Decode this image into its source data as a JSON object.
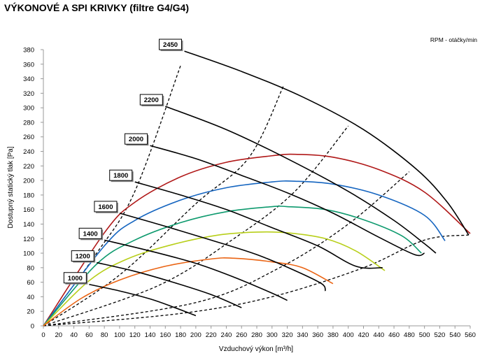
{
  "page": {
    "title": "VÝKONOVÉ A SPI KRIVKY (filtre G4/G4)",
    "rpm_note": "RPM - otáčky/min"
  },
  "chart_data": {
    "type": "line",
    "title": "VÝKONOVÉ A SPI KRIVKY (filtre G4/G4)",
    "xlabel": "Vzduchový výkon [m³/h]",
    "ylabel": "Dostupný statický tlak [Pa]",
    "xlim": [
      0,
      560
    ],
    "ylim": [
      0,
      380
    ],
    "x_ticks": [
      0,
      20,
      40,
      60,
      80,
      100,
      120,
      140,
      160,
      180,
      200,
      220,
      240,
      260,
      280,
      300,
      320,
      340,
      360,
      380,
      400,
      420,
      440,
      460,
      480,
      500,
      520,
      540,
      560
    ],
    "y_ticks": [
      0,
      20,
      40,
      60,
      80,
      100,
      120,
      140,
      160,
      180,
      200,
      220,
      240,
      260,
      280,
      300,
      320,
      340,
      360,
      380
    ],
    "grid": false,
    "fan_curves": [
      {
        "rpm": "1000",
        "points": [
          [
            60,
            57
          ],
          [
            100,
            48
          ],
          [
            140,
            37
          ],
          [
            170,
            26
          ],
          [
            200,
            14
          ]
        ]
      },
      {
        "rpm": "1200",
        "points": [
          [
            70,
            87
          ],
          [
            120,
            75
          ],
          [
            170,
            60
          ],
          [
            220,
            43
          ],
          [
            260,
            25
          ]
        ]
      },
      {
        "rpm": "1400",
        "points": [
          [
            80,
            118
          ],
          [
            140,
            103
          ],
          [
            200,
            86
          ],
          [
            250,
            67
          ],
          [
            300,
            45
          ],
          [
            320,
            35
          ]
        ]
      },
      {
        "rpm": "1600",
        "points": [
          [
            100,
            155
          ],
          [
            160,
            137
          ],
          [
            220,
            118
          ],
          [
            280,
            98
          ],
          [
            330,
            76
          ],
          [
            365,
            58
          ],
          [
            370,
            48
          ]
        ]
      },
      {
        "rpm": "1800",
        "points": [
          [
            120,
            198
          ],
          [
            180,
            180
          ],
          [
            240,
            160
          ],
          [
            300,
            135
          ],
          [
            360,
            110
          ],
          [
            410,
            82
          ],
          [
            445,
            80
          ]
        ]
      },
      {
        "rpm": "2000",
        "points": [
          [
            140,
            248
          ],
          [
            200,
            230
          ],
          [
            260,
            207
          ],
          [
            320,
            183
          ],
          [
            380,
            155
          ],
          [
            440,
            122
          ],
          [
            487,
            98
          ],
          [
            500,
            100
          ]
        ]
      },
      {
        "rpm": "2200",
        "points": [
          [
            160,
            302
          ],
          [
            240,
            270
          ],
          [
            320,
            230
          ],
          [
            400,
            185
          ],
          [
            460,
            145
          ],
          [
            500,
            113
          ],
          [
            515,
            100
          ]
        ]
      },
      {
        "rpm": "2450",
        "points": [
          [
            185,
            378
          ],
          [
            260,
            350
          ],
          [
            340,
            315
          ],
          [
            420,
            270
          ],
          [
            490,
            215
          ],
          [
            530,
            170
          ],
          [
            558,
            125
          ]
        ]
      }
    ],
    "system_curves": [
      {
        "points": [
          [
            0,
            0
          ],
          [
            70,
            100
          ],
          [
            120,
            185
          ],
          [
            180,
            358
          ]
        ]
      },
      {
        "points": [
          [
            0,
            0
          ],
          [
            100,
            70
          ],
          [
            200,
            168
          ],
          [
            270,
            232
          ],
          [
            315,
            330
          ]
        ]
      },
      {
        "points": [
          [
            0,
            0
          ],
          [
            150,
            55
          ],
          [
            250,
            120
          ],
          [
            330,
            185
          ],
          [
            400,
            275
          ]
        ]
      },
      {
        "points": [
          [
            0,
            0
          ],
          [
            200,
            32
          ],
          [
            310,
            80
          ],
          [
            400,
            140
          ],
          [
            480,
            212
          ]
        ]
      },
      {
        "points": [
          [
            0,
            0
          ],
          [
            180,
            17
          ],
          [
            300,
            40
          ],
          [
            420,
            80
          ],
          [
            500,
            118
          ],
          [
            558,
            125
          ]
        ]
      }
    ],
    "spi_curves": [
      {
        "color": "#b01818",
        "points": [
          [
            0,
            0
          ],
          [
            80,
            128
          ],
          [
            120,
            170
          ],
          [
            180,
            205
          ],
          [
            240,
            225
          ],
          [
            300,
            234
          ],
          [
            330,
            236
          ],
          [
            380,
            232
          ],
          [
            440,
            215
          ],
          [
            500,
            184
          ],
          [
            560,
            127
          ]
        ]
      },
      {
        "color": "#1565c0",
        "points": [
          [
            0,
            0
          ],
          [
            80,
            110
          ],
          [
            120,
            145
          ],
          [
            180,
            173
          ],
          [
            240,
            190
          ],
          [
            300,
            198
          ],
          [
            330,
            199
          ],
          [
            380,
            195
          ],
          [
            440,
            180
          ],
          [
            500,
            152
          ],
          [
            527,
            117
          ]
        ]
      },
      {
        "color": "#0e9a6e",
        "points": [
          [
            0,
            0
          ],
          [
            70,
            85
          ],
          [
            120,
            118
          ],
          [
            180,
            142
          ],
          [
            240,
            157
          ],
          [
            300,
            164
          ],
          [
            320,
            164
          ],
          [
            370,
            160
          ],
          [
            420,
            146
          ],
          [
            470,
            124
          ],
          [
            496,
            100
          ]
        ]
      },
      {
        "color": "#b8cf1a",
        "points": [
          [
            0,
            0
          ],
          [
            60,
            62
          ],
          [
            110,
            92
          ],
          [
            170,
            112
          ],
          [
            230,
            125
          ],
          [
            280,
            129
          ],
          [
            320,
            128
          ],
          [
            370,
            120
          ],
          [
            410,
            103
          ],
          [
            448,
            76
          ]
        ]
      },
      {
        "color": "#ea6414",
        "points": [
          [
            0,
            0
          ],
          [
            50,
            38
          ],
          [
            100,
            63
          ],
          [
            160,
            82
          ],
          [
            220,
            92
          ],
          [
            250,
            93
          ],
          [
            300,
            88
          ],
          [
            340,
            80
          ],
          [
            380,
            58
          ]
        ]
      }
    ],
    "rpm_label_anchor": [
      [
        60,
        57
      ],
      [
        70,
        87
      ],
      [
        80,
        118
      ],
      [
        100,
        155
      ],
      [
        120,
        198
      ],
      [
        140,
        248
      ],
      [
        160,
        302
      ],
      [
        185,
        378
      ]
    ]
  }
}
